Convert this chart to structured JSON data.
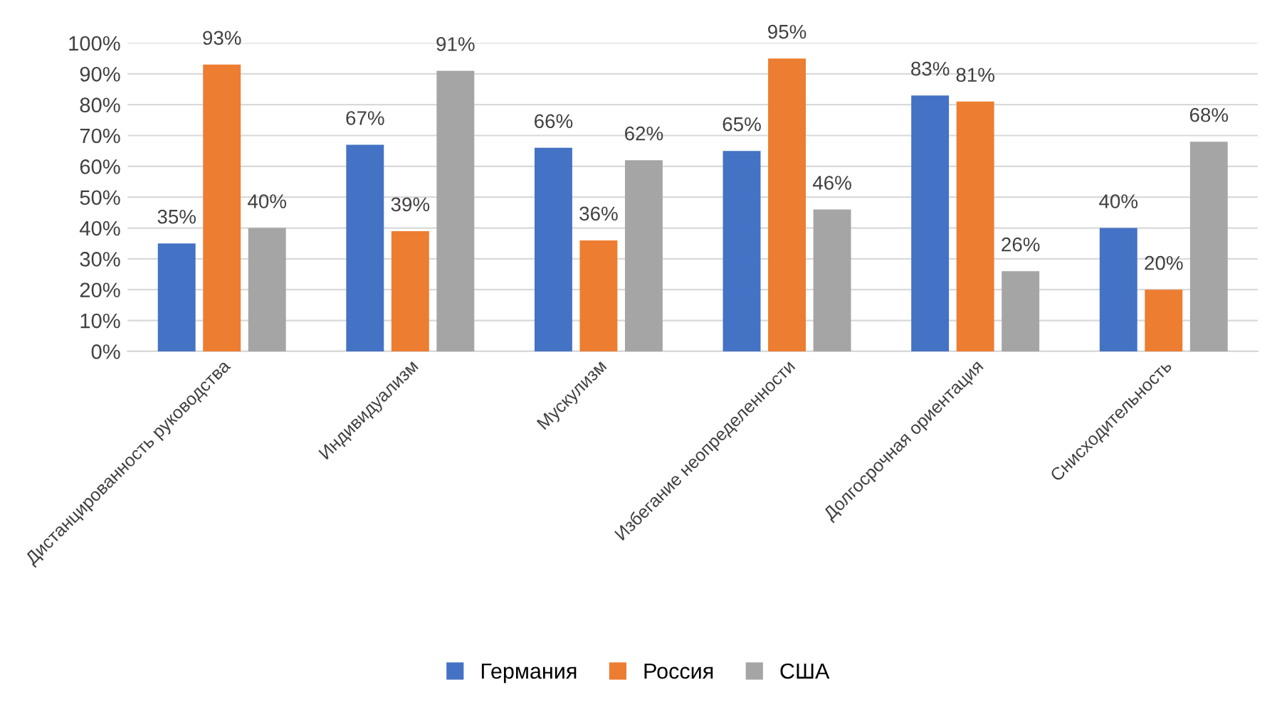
{
  "chart_data": {
    "type": "bar",
    "categories": [
      "Дистанцированность руководства",
      "Индивидуализм",
      "Мускулизм",
      "Избегание неопределенности",
      "Долгосрочная ориентация",
      "Снисходительность"
    ],
    "series": [
      {
        "name": "Германия",
        "color": "#4472c4",
        "values": [
          35,
          67,
          66,
          65,
          83,
          40
        ],
        "value_labels": [
          "35%",
          "67%",
          "66%",
          "65%",
          "83%",
          "40%"
        ]
      },
      {
        "name": "Россия",
        "color": "#ed7d31",
        "values": [
          93,
          39,
          36,
          95,
          81,
          20
        ],
        "value_labels": [
          "93%",
          "39%",
          "36%",
          "95%",
          "81%",
          "20%"
        ]
      },
      {
        "name": "США",
        "color": "#a5a5a5",
        "values": [
          40,
          91,
          62,
          46,
          26,
          68
        ],
        "value_labels": [
          "40%",
          "91%",
          "62%",
          "46%",
          "26%",
          "68%"
        ]
      }
    ],
    "ylim": [
      0,
      100
    ],
    "yticks": [
      {
        "value": 0,
        "label": "0%"
      },
      {
        "value": 10,
        "label": "10%"
      },
      {
        "value": 20,
        "label": "20%"
      },
      {
        "value": 30,
        "label": "30%"
      },
      {
        "value": 40,
        "label": "40%"
      },
      {
        "value": 50,
        "label": "50%"
      },
      {
        "value": 60,
        "label": "60%"
      },
      {
        "value": 70,
        "label": "70%"
      },
      {
        "value": 80,
        "label": "80%"
      },
      {
        "value": 90,
        "label": "90%"
      },
      {
        "value": 100,
        "label": "100%"
      }
    ],
    "grid": "y",
    "legend": "bottom"
  }
}
